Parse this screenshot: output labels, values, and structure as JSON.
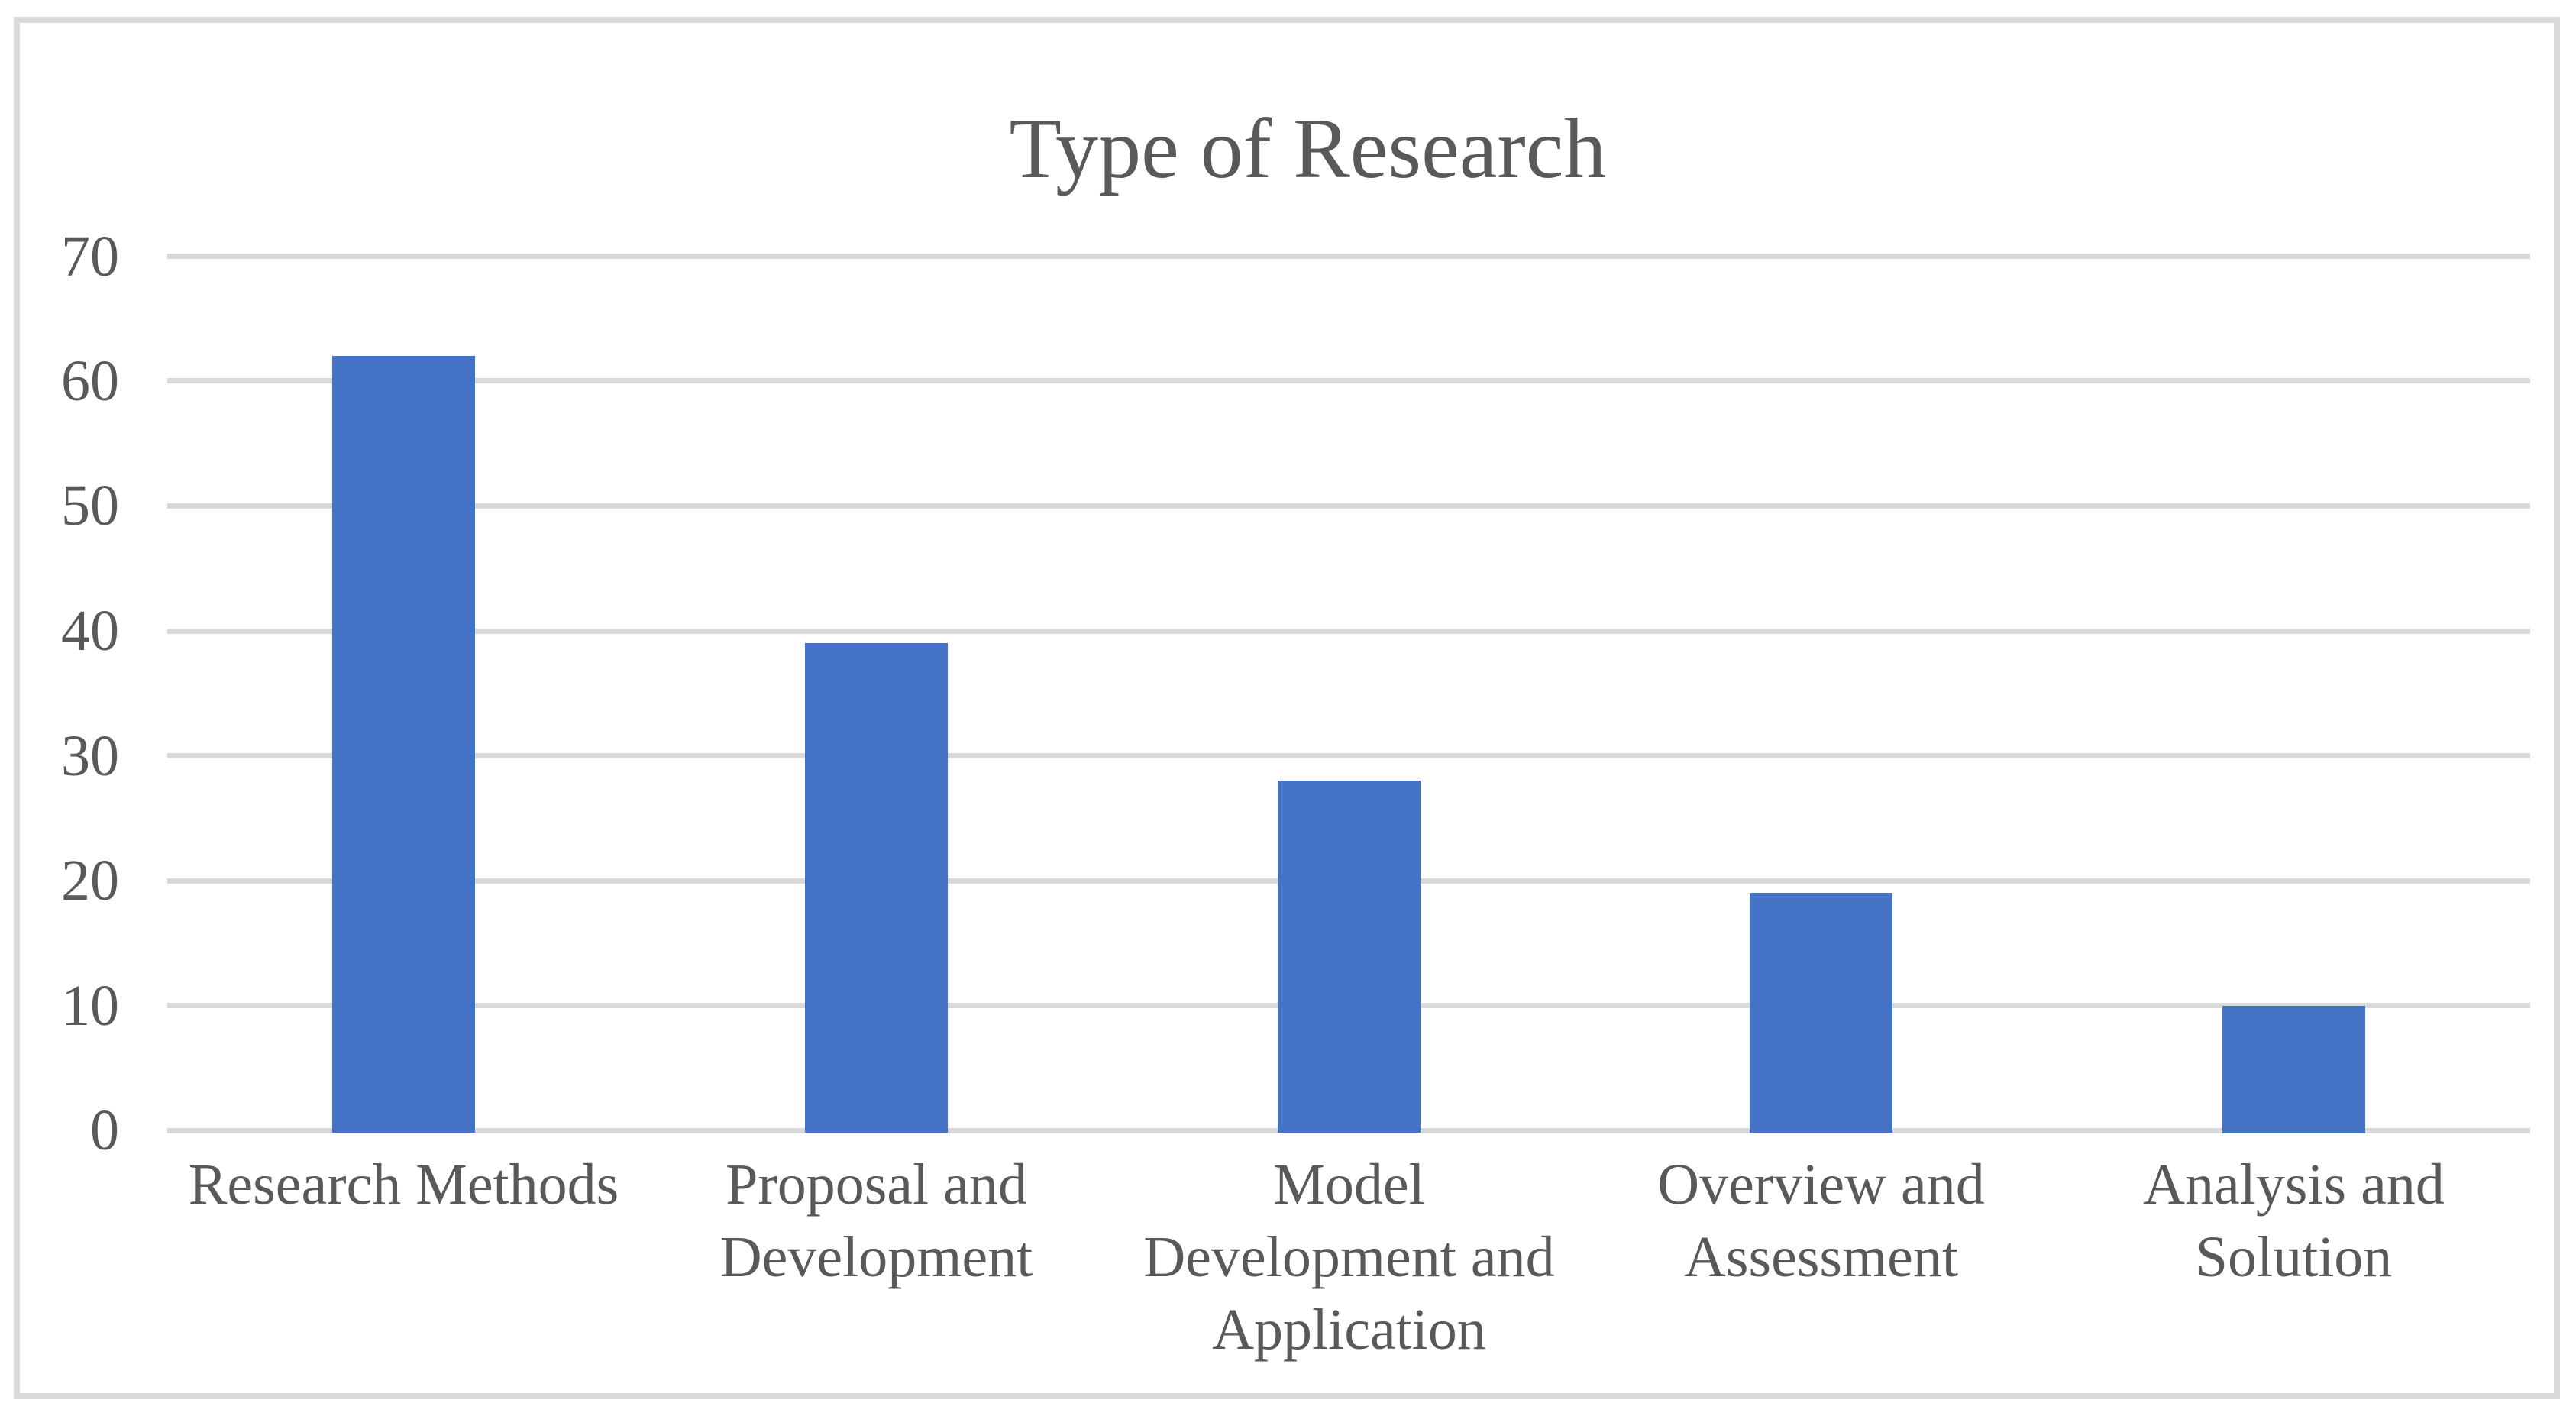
{
  "chart_data": {
    "type": "bar",
    "title": "Type of Research",
    "categories": [
      "Research Methods",
      "Proposal and Development",
      "Model Development and Application",
      "Overview and Assessment",
      "Analysis and Solution"
    ],
    "category_lines": [
      [
        "Research Methods"
      ],
      [
        "Proposal and",
        "Development"
      ],
      [
        "Model",
        "Development and",
        "Application"
      ],
      [
        "Overview and",
        "Assessment"
      ],
      [
        "Analysis and",
        "Solution"
      ]
    ],
    "values": [
      62,
      39,
      28,
      19,
      10
    ],
    "xlabel": "",
    "ylabel": "",
    "ylim": [
      0,
      70
    ],
    "yticks": [
      0,
      10,
      20,
      30,
      40,
      50,
      60,
      70
    ],
    "grid": true,
    "legend_position": "none",
    "colors": {
      "bar": "#4472C4",
      "gridline": "#D9D9D9",
      "frame_border": "#D9D9D9",
      "text": "#595959",
      "background": "#FFFFFF"
    }
  }
}
